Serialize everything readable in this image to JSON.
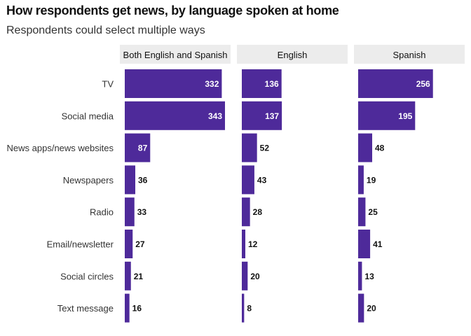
{
  "title": "How respondents get news, by language spoken at home",
  "subtitle": "Respondents could select multiple ways",
  "chart_data": {
    "type": "bar",
    "orientation": "horizontal",
    "title": "How respondents get news, by language spoken at home",
    "subtitle": "Respondents could select multiple ways",
    "categories": [
      "TV",
      "Social media",
      "News apps/news websites",
      "Newspapers",
      "Radio",
      "Email/newsletter",
      "Social circles",
      "Text message"
    ],
    "panels": [
      {
        "name": "Both English and Spanish",
        "values": [
          332,
          343,
          87,
          36,
          33,
          27,
          21,
          16
        ]
      },
      {
        "name": "English",
        "values": [
          136,
          137,
          52,
          43,
          28,
          12,
          20,
          8
        ]
      },
      {
        "name": "Spanish",
        "values": [
          256,
          195,
          48,
          19,
          25,
          41,
          13,
          20
        ]
      }
    ],
    "xlim": [
      0,
      343
    ],
    "bar_color": "#4e2a9a",
    "panel_header_color": "#ececec",
    "grid": false,
    "legend": "none"
  }
}
